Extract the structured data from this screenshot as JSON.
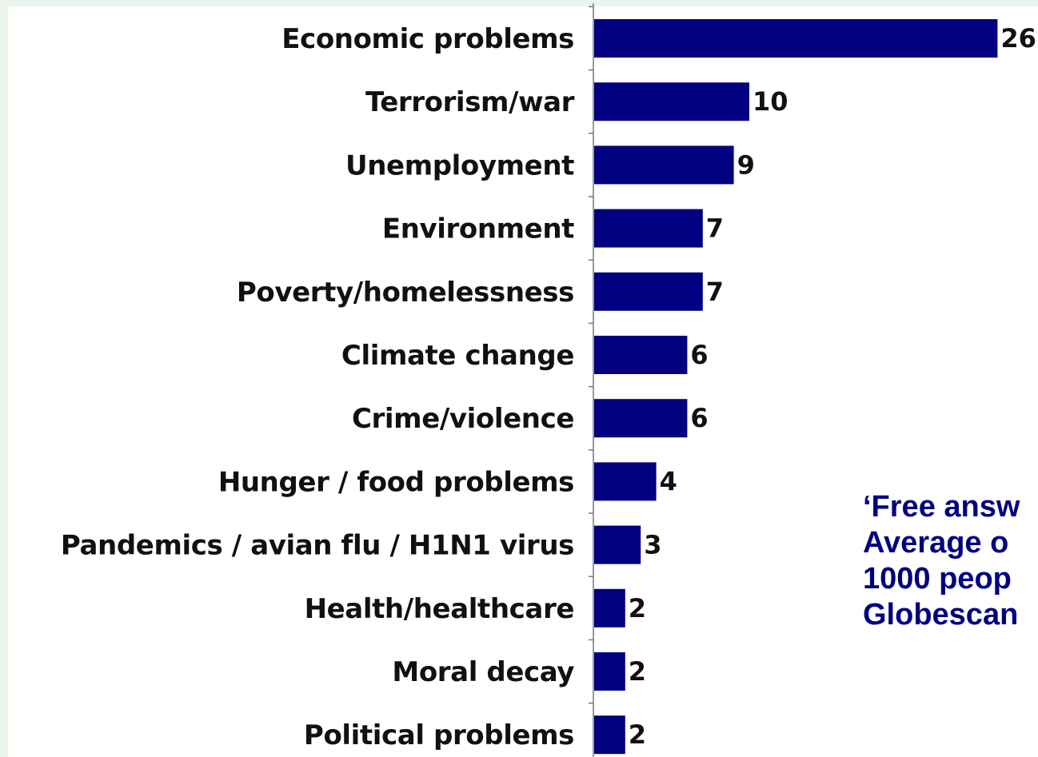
{
  "colors": {
    "background": "#e9f5ea",
    "panel": "#ffffff",
    "bar": "#000080",
    "axis": "#777777",
    "text": "#111111",
    "note_text": "#000080"
  },
  "chart_data": {
    "type": "bar",
    "orientation": "horizontal",
    "title": "",
    "xlabel": "",
    "ylabel": "",
    "xlim": [
      0,
      26
    ],
    "grid": false,
    "legend": "none",
    "categories": [
      "Economic problems",
      "Terrorism/war",
      "Unemployment",
      "Environment",
      "Poverty/homelessness",
      "Climate change",
      "Crime/violence",
      "Hunger / food problems",
      "Pandemics / avian flu / H1N1 virus",
      "Health/healthcare",
      "Moral decay",
      "Political problems"
    ],
    "values": [
      26,
      10,
      9,
      7,
      7,
      6,
      6,
      4,
      3,
      2,
      2,
      2
    ],
    "data_labels": [
      "26",
      "10",
      "9",
      "7",
      "7",
      "6",
      "6",
      "4",
      "3",
      "2",
      "2",
      "2"
    ]
  },
  "note": {
    "lines": [
      "‘Free answ",
      "Average o",
      "1000 peop",
      "Globescan"
    ]
  }
}
